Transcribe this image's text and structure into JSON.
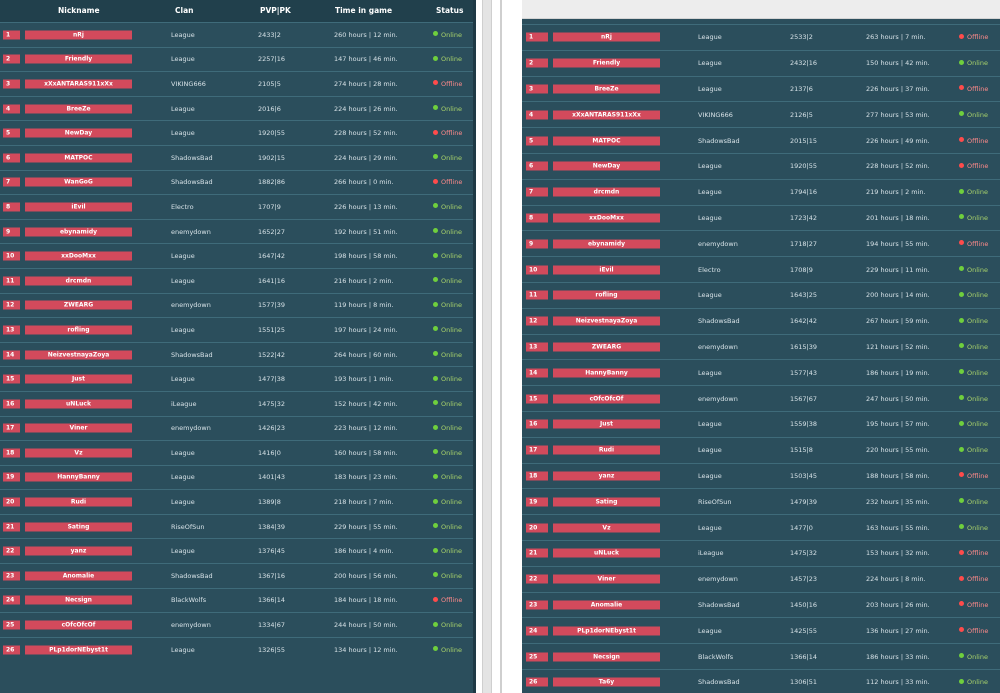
{
  "colors": {
    "panel_bg": "#2b4e5c",
    "header_bg": "#21404c",
    "rank_badge": "#d24a5c",
    "online": "#6fcf3d",
    "offline": "#ff4b4b"
  },
  "header": {
    "nickname": "Nickname",
    "clan": "Clan",
    "pvp_pk": "PVP|PK",
    "time": "Time in game",
    "status": "Status"
  },
  "left_table": [
    {
      "rank": "1",
      "nick": "nRj",
      "clan": "League",
      "pvp": "2433|2",
      "time": "260 hours | 12 min.",
      "status": "Online"
    },
    {
      "rank": "2",
      "nick": "Friendly",
      "clan": "League",
      "pvp": "2257|16",
      "time": "147 hours | 46 min.",
      "status": "Online"
    },
    {
      "rank": "3",
      "nick": "xXxANTARAS911xXx",
      "clan": "VIKING666",
      "pvp": "2105|5",
      "time": "274 hours | 28 min.",
      "status": "Offline"
    },
    {
      "rank": "4",
      "nick": "BreeZe",
      "clan": "League",
      "pvp": "2016|6",
      "time": "224 hours | 26 min.",
      "status": "Online"
    },
    {
      "rank": "5",
      "nick": "NewDay",
      "clan": "League",
      "pvp": "1920|55",
      "time": "228 hours | 52 min.",
      "status": "Offline"
    },
    {
      "rank": "6",
      "nick": "MATPOC",
      "clan": "ShadowsBad",
      "pvp": "1902|15",
      "time": "224 hours | 29 min.",
      "status": "Online"
    },
    {
      "rank": "7",
      "nick": "WanGoG",
      "clan": "ShadowsBad",
      "pvp": "1882|86",
      "time": "266 hours | 0 min.",
      "status": "Offline"
    },
    {
      "rank": "8",
      "nick": "iEvil",
      "clan": "Electro",
      "pvp": "1707|9",
      "time": "226 hours | 13 min.",
      "status": "Online"
    },
    {
      "rank": "9",
      "nick": "ebynamidy",
      "clan": "enemydown",
      "pvp": "1652|27",
      "time": "192 hours | 51 min.",
      "status": "Online"
    },
    {
      "rank": "10",
      "nick": "xxDooMxx",
      "clan": "League",
      "pvp": "1647|42",
      "time": "198 hours | 58 min.",
      "status": "Online"
    },
    {
      "rank": "11",
      "nick": "drcmdn",
      "clan": "League",
      "pvp": "1641|16",
      "time": "216 hours | 2 min.",
      "status": "Online"
    },
    {
      "rank": "12",
      "nick": "ZWEARG",
      "clan": "enemydown",
      "pvp": "1577|39",
      "time": "119 hours | 8 min.",
      "status": "Online"
    },
    {
      "rank": "13",
      "nick": "rofling",
      "clan": "League",
      "pvp": "1551|25",
      "time": "197 hours | 24 min.",
      "status": "Online"
    },
    {
      "rank": "14",
      "nick": "NeizvestnayaZoya",
      "clan": "ShadowsBad",
      "pvp": "1522|42",
      "time": "264 hours | 60 min.",
      "status": "Online"
    },
    {
      "rank": "15",
      "nick": "Just",
      "clan": "League",
      "pvp": "1477|38",
      "time": "193 hours | 1 min.",
      "status": "Online"
    },
    {
      "rank": "16",
      "nick": "uNLuck",
      "clan": "iLeague",
      "pvp": "1475|32",
      "time": "152 hours | 42 min.",
      "status": "Online"
    },
    {
      "rank": "17",
      "nick": "Viner",
      "clan": "enemydown",
      "pvp": "1426|23",
      "time": "223 hours | 12 min.",
      "status": "Online"
    },
    {
      "rank": "18",
      "nick": "Vz",
      "clan": "League",
      "pvp": "1416|0",
      "time": "160 hours | 58 min.",
      "status": "Online"
    },
    {
      "rank": "19",
      "nick": "HannyBanny",
      "clan": "League",
      "pvp": "1401|43",
      "time": "183 hours | 23 min.",
      "status": "Online"
    },
    {
      "rank": "20",
      "nick": "Rudi",
      "clan": "League",
      "pvp": "1389|8",
      "time": "218 hours | 7 min.",
      "status": "Online"
    },
    {
      "rank": "21",
      "nick": "Sating",
      "clan": "RiseOfSun",
      "pvp": "1384|39",
      "time": "229 hours | 55 min.",
      "status": "Online"
    },
    {
      "rank": "22",
      "nick": "yanz",
      "clan": "League",
      "pvp": "1376|45",
      "time": "186 hours | 4 min.",
      "status": "Online"
    },
    {
      "rank": "23",
      "nick": "Anomalie",
      "clan": "ShadowsBad",
      "pvp": "1367|16",
      "time": "200 hours | 56 min.",
      "status": "Online"
    },
    {
      "rank": "24",
      "nick": "Necsign",
      "clan": "BlackWolfs",
      "pvp": "1366|14",
      "time": "184 hours | 18 min.",
      "status": "Offline"
    },
    {
      "rank": "25",
      "nick": "cOfcOfcOf",
      "clan": "enemydown",
      "pvp": "1334|67",
      "time": "244 hours | 50 min.",
      "status": "Online"
    },
    {
      "rank": "26",
      "nick": "PLp1dorNEbyst1t",
      "clan": "League",
      "pvp": "1326|55",
      "time": "134 hours | 12 min.",
      "status": "Online"
    }
  ],
  "right_table": [
    {
      "rank": "1",
      "nick": "nRj",
      "clan": "League",
      "pvp": "2533|2",
      "time": "263 hours | 7 min.",
      "status": "Offline"
    },
    {
      "rank": "2",
      "nick": "Friendly",
      "clan": "League",
      "pvp": "2432|16",
      "time": "150 hours | 42 min.",
      "status": "Online"
    },
    {
      "rank": "3",
      "nick": "BreeZe",
      "clan": "League",
      "pvp": "2137|6",
      "time": "226 hours | 37 min.",
      "status": "Offline"
    },
    {
      "rank": "4",
      "nick": "xXxANTARAS911xXx",
      "clan": "VIKING666",
      "pvp": "2126|5",
      "time": "277 hours | 53 min.",
      "status": "Online"
    },
    {
      "rank": "5",
      "nick": "MATPOC",
      "clan": "ShadowsBad",
      "pvp": "2015|15",
      "time": "226 hours | 49 min.",
      "status": "Offline"
    },
    {
      "rank": "6",
      "nick": "NewDay",
      "clan": "League",
      "pvp": "1920|55",
      "time": "228 hours | 52 min.",
      "status": "Offline"
    },
    {
      "rank": "7",
      "nick": "drcmdn",
      "clan": "League",
      "pvp": "1794|16",
      "time": "219 hours | 2 min.",
      "status": "Online"
    },
    {
      "rank": "8",
      "nick": "xxDooMxx",
      "clan": "League",
      "pvp": "1723|42",
      "time": "201 hours | 18 min.",
      "status": "Online"
    },
    {
      "rank": "9",
      "nick": "ebynamidy",
      "clan": "enemydown",
      "pvp": "1718|27",
      "time": "194 hours | 55 min.",
      "status": "Offline"
    },
    {
      "rank": "10",
      "nick": "iEvil",
      "clan": "Electro",
      "pvp": "1708|9",
      "time": "229 hours | 11 min.",
      "status": "Online"
    },
    {
      "rank": "11",
      "nick": "rofling",
      "clan": "League",
      "pvp": "1643|25",
      "time": "200 hours | 14 min.",
      "status": "Online"
    },
    {
      "rank": "12",
      "nick": "NeizvestnayaZoya",
      "clan": "ShadowsBad",
      "pvp": "1642|42",
      "time": "267 hours | 59 min.",
      "status": "Online"
    },
    {
      "rank": "13",
      "nick": "ZWEARG",
      "clan": "enemydown",
      "pvp": "1615|39",
      "time": "121 hours | 52 min.",
      "status": "Online"
    },
    {
      "rank": "14",
      "nick": "HannyBanny",
      "clan": "League",
      "pvp": "1577|43",
      "time": "186 hours | 19 min.",
      "status": "Online"
    },
    {
      "rank": "15",
      "nick": "cOfcOfcOf",
      "clan": "enemydown",
      "pvp": "1567|67",
      "time": "247 hours | 50 min.",
      "status": "Online"
    },
    {
      "rank": "16",
      "nick": "Just",
      "clan": "League",
      "pvp": "1559|38",
      "time": "195 hours | 57 min.",
      "status": "Online"
    },
    {
      "rank": "17",
      "nick": "Rudi",
      "clan": "League",
      "pvp": "1515|8",
      "time": "220 hours | 55 min.",
      "status": "Online"
    },
    {
      "rank": "18",
      "nick": "yanz",
      "clan": "League",
      "pvp": "1503|45",
      "time": "188 hours | 58 min.",
      "status": "Offline"
    },
    {
      "rank": "19",
      "nick": "Sating",
      "clan": "RiseOfSun",
      "pvp": "1479|39",
      "time": "232 hours | 35 min.",
      "status": "Online"
    },
    {
      "rank": "20",
      "nick": "Vz",
      "clan": "League",
      "pvp": "1477|0",
      "time": "163 hours | 55 min.",
      "status": "Online"
    },
    {
      "rank": "21",
      "nick": "uNLuck",
      "clan": "iLeague",
      "pvp": "1475|32",
      "time": "153 hours | 32 min.",
      "status": "Offline"
    },
    {
      "rank": "22",
      "nick": "Viner",
      "clan": "enemydown",
      "pvp": "1457|23",
      "time": "224 hours | 8 min.",
      "status": "Offline"
    },
    {
      "rank": "23",
      "nick": "Anomalie",
      "clan": "ShadowsBad",
      "pvp": "1450|16",
      "time": "203 hours | 26 min.",
      "status": "Offline"
    },
    {
      "rank": "24",
      "nick": "PLp1dorNEbyst1t",
      "clan": "League",
      "pvp": "1425|55",
      "time": "136 hours | 27 min.",
      "status": "Offline"
    },
    {
      "rank": "25",
      "nick": "Necsign",
      "clan": "BlackWolfs",
      "pvp": "1366|14",
      "time": "186 hours | 33 min.",
      "status": "Online"
    },
    {
      "rank": "26",
      "nick": "Ta6y",
      "clan": "ShadowsBad",
      "pvp": "1306|51",
      "time": "112 hours | 33 min.",
      "status": "Online"
    }
  ]
}
